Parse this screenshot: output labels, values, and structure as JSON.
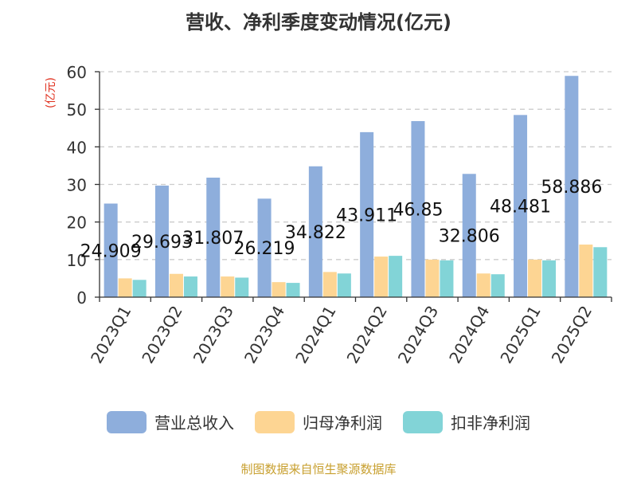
{
  "title": "营收、净利季度变动情况(亿元)",
  "source": "制图数据来自恒生聚源数据库",
  "chart_data": {
    "type": "bar",
    "title": "营收、净利季度变动情况(亿元)",
    "ylabel": "(亿元)",
    "xlabel": "",
    "ylim": [
      0,
      60
    ],
    "yticks": [
      0,
      10,
      20,
      30,
      40,
      50,
      60
    ],
    "grid": true,
    "legend": "bottom",
    "categories": [
      "2023Q1",
      "2023Q2",
      "2023Q3",
      "2023Q4",
      "2024Q1",
      "2024Q2",
      "2024Q3",
      "2024Q4",
      "2025Q1",
      "2025Q2"
    ],
    "series": [
      {
        "name": "营业总收入",
        "color": "#8eaedc",
        "values": [
          24.909,
          29.693,
          31.807,
          26.219,
          34.822,
          43.911,
          46.85,
          32.806,
          48.481,
          58.886
        ],
        "labels": [
          "24.909",
          "29.693",
          "31.807",
          "26.219",
          "34.822",
          "43.911",
          "46.85",
          "32.806",
          "48.481",
          "58.886"
        ]
      },
      {
        "name": "归母净利润",
        "color": "#fdd593",
        "values": [
          5.0,
          6.2,
          5.5,
          4.0,
          6.7,
          10.8,
          10.0,
          6.3,
          10.0,
          14.0
        ]
      },
      {
        "name": "扣非净利润",
        "color": "#82d4d7",
        "values": [
          4.6,
          5.5,
          5.2,
          3.8,
          6.3,
          11.0,
          9.8,
          6.1,
          9.8,
          13.3
        ]
      }
    ]
  }
}
